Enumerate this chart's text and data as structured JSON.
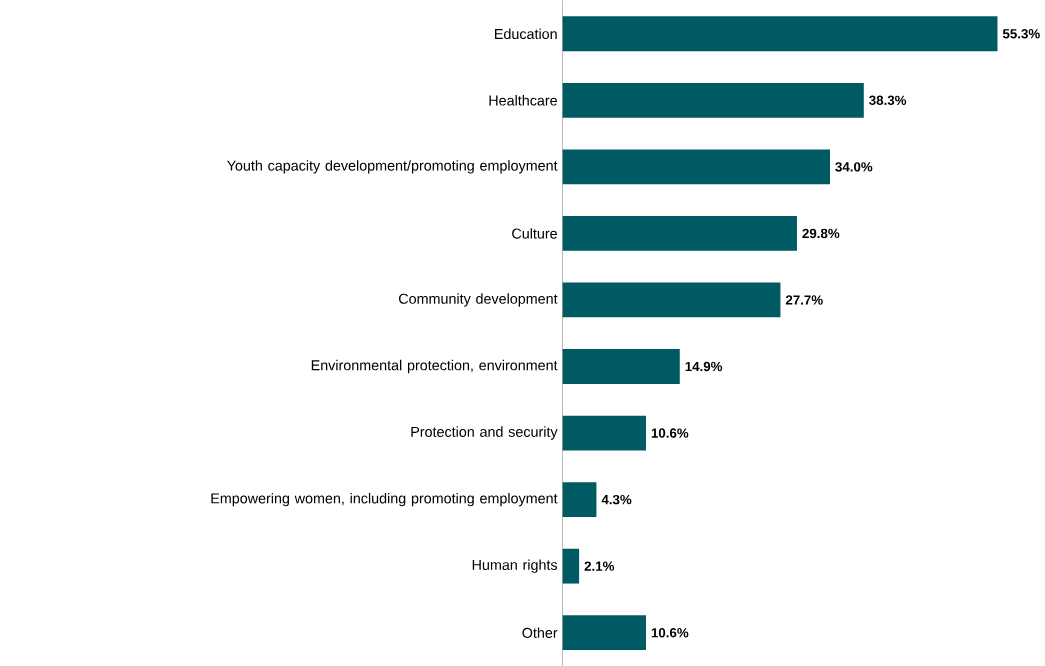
{
  "chart_data": {
    "type": "bar",
    "orientation": "horizontal",
    "color": "#005a64",
    "categories": [
      "Education",
      "Healthcare",
      "Youth capacity development/promoting employment",
      "Culture",
      "Community development",
      "Environmental protection, environment",
      "Protection and security",
      "Empowering women, including promoting employment",
      "Human rights",
      "Other"
    ],
    "values": [
      55.3,
      38.3,
      34.0,
      29.8,
      27.7,
      14.9,
      10.6,
      4.3,
      2.1,
      10.6
    ],
    "value_labels": [
      "55.3%",
      "38.3%",
      "34.0%",
      "29.8%",
      "27.7%",
      "14.9%",
      "10.6%",
      "4.3%",
      "2.1%",
      "10.6%"
    ],
    "tick_labels": "y"
  }
}
